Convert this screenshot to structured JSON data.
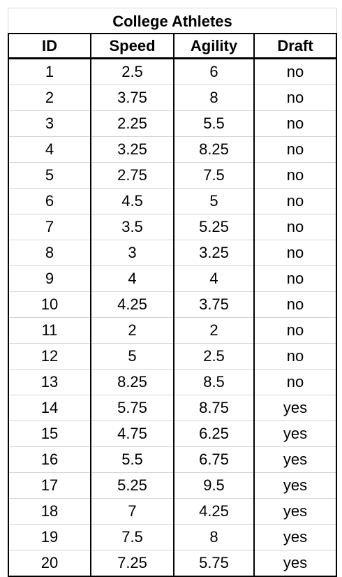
{
  "table": {
    "title": "College Athletes",
    "headers": [
      "ID",
      "Speed",
      "Agility",
      "Draft"
    ],
    "rows": [
      [
        "1",
        "2.5",
        "6",
        "no"
      ],
      [
        "2",
        "3.75",
        "8",
        "no"
      ],
      [
        "3",
        "2.25",
        "5.5",
        "no"
      ],
      [
        "4",
        "3.25",
        "8.25",
        "no"
      ],
      [
        "5",
        "2.75",
        "7.5",
        "no"
      ],
      [
        "6",
        "4.5",
        "5",
        "no"
      ],
      [
        "7",
        "3.5",
        "5.25",
        "no"
      ],
      [
        "8",
        "3",
        "3.25",
        "no"
      ],
      [
        "9",
        "4",
        "4",
        "no"
      ],
      [
        "10",
        "4.25",
        "3.75",
        "no"
      ],
      [
        "11",
        "2",
        "2",
        "no"
      ],
      [
        "12",
        "5",
        "2.5",
        "no"
      ],
      [
        "13",
        "8.25",
        "8.5",
        "no"
      ],
      [
        "14",
        "5.75",
        "8.75",
        "yes"
      ],
      [
        "15",
        "4.75",
        "6.25",
        "yes"
      ],
      [
        "16",
        "5.5",
        "6.75",
        "yes"
      ],
      [
        "17",
        "5.25",
        "9.5",
        "yes"
      ],
      [
        "18",
        "7",
        "4.25",
        "yes"
      ],
      [
        "19",
        "7.5",
        "8",
        "yes"
      ],
      [
        "20",
        "7.25",
        "5.75",
        "yes"
      ]
    ]
  }
}
